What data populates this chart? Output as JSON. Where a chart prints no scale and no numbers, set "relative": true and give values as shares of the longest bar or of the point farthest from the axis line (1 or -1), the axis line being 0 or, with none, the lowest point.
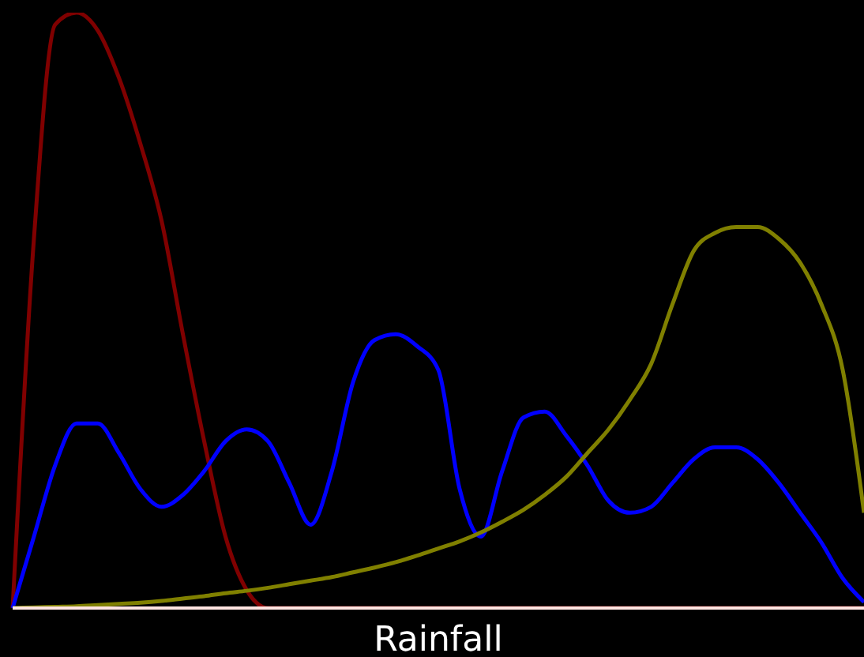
{
  "chart_data": {
    "type": "line",
    "xlabel": "Rainfall",
    "relative": true,
    "categories": [
      null,
      null,
      null,
      null,
      null,
      null,
      null,
      null,
      null,
      null,
      null,
      null,
      null,
      null,
      null,
      null,
      null,
      null,
      null,
      null,
      null,
      null,
      null,
      null,
      null,
      null,
      null,
      null,
      null,
      null,
      null,
      null,
      null,
      null,
      null,
      null,
      null,
      null,
      null,
      null,
      null
    ],
    "series": [
      {
        "color": "#800000",
        "values": [
          0,
          0.62,
          0.98,
          1,
          0.97,
          0.89,
          0.78,
          0.65,
          0.46,
          0.28,
          0.12,
          0.03,
          0,
          0,
          0,
          0,
          0,
          0,
          0,
          0,
          0,
          0,
          0,
          0,
          0,
          0,
          0,
          0,
          0,
          0,
          0,
          0,
          0,
          0,
          0,
          0,
          0,
          0,
          0,
          0,
          0
        ]
      },
      {
        "color": "#0000ff",
        "values": [
          0,
          0.12,
          0.24,
          0.31,
          0.31,
          0.26,
          0.2,
          0.17,
          0.19,
          0.23,
          0.28,
          0.3,
          0.28,
          0.21,
          0.14,
          0.23,
          0.38,
          0.45,
          0.46,
          0.44,
          0.4,
          0.2,
          0.12,
          0.23,
          0.32,
          0.33,
          0.29,
          0.24,
          0.18,
          0.16,
          0.17,
          0.21,
          0.25,
          0.27,
          0.27,
          0.25,
          0.21,
          0.16,
          0.11,
          0.05,
          0.01
        ]
      },
      {
        "color": "#808000",
        "values": [
          0,
          0.001,
          0.002,
          0.003,
          0.005,
          0.007,
          0.009,
          0.012,
          0.016,
          0.02,
          0.025,
          0.029,
          0.034,
          0.04,
          0.046,
          0.052,
          0.06,
          0.068,
          0.077,
          0.088,
          0.1,
          0.112,
          0.127,
          0.145,
          0.165,
          0.19,
          0.22,
          0.26,
          0.3,
          0.35,
          0.41,
          0.51,
          0.6,
          0.63,
          0.64,
          0.64,
          0.62,
          0.58,
          0.51,
          0.4,
          0.16
        ]
      }
    ]
  }
}
